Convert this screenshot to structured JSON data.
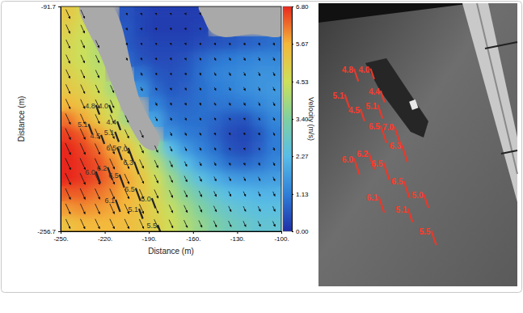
{
  "chart_data": {
    "type": "heatmap",
    "x_label": "Distance (m)",
    "y_label": "Distance (m)",
    "xlim": [
      -250,
      -100
    ],
    "xticks": [
      {
        "value": -250,
        "label": "-250."
      },
      {
        "value": -220,
        "label": "-220."
      },
      {
        "value": -190,
        "label": "-190."
      },
      {
        "value": -160,
        "label": "-160."
      },
      {
        "value": -130,
        "label": "-130."
      },
      {
        "value": -100,
        "label": "-100."
      }
    ],
    "ylim": [
      -256.7,
      -91.7
    ],
    "yticks": [
      -256.7,
      -91.7
    ],
    "x": [
      -245,
      -235,
      -225,
      -215,
      -205,
      -195,
      -185,
      -175,
      -165,
      -155,
      -145,
      -135,
      -125,
      -115,
      -105
    ],
    "y": [
      -97.2,
      -108.2,
      -119.2,
      -130.2,
      -141.2,
      -152.2,
      -163.2,
      -174.2,
      -185.2,
      -196.2,
      -207.2,
      -218.2,
      -229.2,
      -240.2,
      -251.2
    ],
    "values": [
      [
        5.2,
        4.8,
        null,
        null,
        0.5,
        0.3,
        0.2,
        0.2,
        0.2,
        0.2,
        null,
        null,
        null,
        null,
        null
      ],
      [
        5.0,
        4.6,
        null,
        null,
        0.6,
        0.3,
        0.2,
        0.2,
        0.2,
        0.3,
        null,
        null,
        null,
        null,
        null
      ],
      [
        4.8,
        4.5,
        4.2,
        null,
        0.6,
        0.4,
        0.3,
        0.3,
        0.3,
        0.4,
        0.5,
        0.6,
        0.7,
        0.8,
        0.9
      ],
      [
        4.8,
        4.5,
        4.2,
        null,
        0.8,
        0.5,
        0.4,
        0.4,
        0.5,
        0.8,
        1.0,
        1.1,
        1.2,
        1.3,
        1.3
      ],
      [
        5.0,
        4.7,
        4.3,
        null,
        null,
        1.0,
        0.6,
        0.5,
        0.6,
        0.9,
        1.2,
        1.3,
        1.4,
        1.5,
        1.5
      ],
      [
        5.2,
        5.0,
        4.6,
        4.0,
        null,
        1.5,
        0.8,
        0.6,
        0.7,
        0.9,
        1.1,
        1.2,
        1.4,
        1.5,
        1.6
      ],
      [
        5.6,
        5.3,
        4.9,
        4.4,
        null,
        null,
        1.2,
        0.8,
        0.8,
        0.9,
        1.0,
        1.0,
        1.1,
        1.3,
        1.5
      ],
      [
        6.2,
        5.8,
        5.2,
        4.7,
        3.8,
        null,
        1.8,
        1.0,
        0.9,
        0.9,
        0.8,
        0.6,
        0.5,
        0.9,
        1.3
      ],
      [
        6.6,
        6.4,
        5.9,
        5.3,
        4.8,
        4.0,
        null,
        1.5,
        1.1,
        1.0,
        0.7,
        0.4,
        0.3,
        0.6,
        1.1
      ],
      [
        6.8,
        6.6,
        6.3,
        5.8,
        5.3,
        4.6,
        3.6,
        2.3,
        1.6,
        1.2,
        0.9,
        0.5,
        0.4,
        0.7,
        1.1
      ],
      [
        6.8,
        6.7,
        6.5,
        6.1,
        5.6,
        5.0,
        4.2,
        3.2,
        2.3,
        1.7,
        1.3,
        0.9,
        0.8,
        1.0,
        1.3
      ],
      [
        6.8,
        6.7,
        6.5,
        6.2,
        5.8,
        5.3,
        4.6,
        3.8,
        3.0,
        2.4,
        2.0,
        1.7,
        1.6,
        1.6,
        1.7
      ],
      [
        6.4,
        6.4,
        6.2,
        6.0,
        5.7,
        5.3,
        4.8,
        4.1,
        3.5,
        3.0,
        2.6,
        2.3,
        2.2,
        2.1,
        2.1
      ],
      [
        5.9,
        6.0,
        5.9,
        5.8,
        5.6,
        5.3,
        4.9,
        4.4,
        3.9,
        3.4,
        3.0,
        2.7,
        2.5,
        2.4,
        2.4
      ],
      [
        5.4,
        5.6,
        5.6,
        5.6,
        5.5,
        5.3,
        5.0,
        4.6,
        4.1,
        3.7,
        3.3,
        3.0,
        2.8,
        2.6,
        2.6
      ]
    ],
    "colorbar": {
      "label": "Velocity (m/s)",
      "range": [
        0,
        6.8
      ],
      "ticks": [
        {
          "value": 0,
          "label": "0.00"
        },
        1.13,
        2.27,
        {
          "value": 3.4,
          "label": "3.40"
        },
        4.53,
        5.67,
        {
          "value": 6.8,
          "label": "6.80"
        }
      ]
    },
    "measurements": {
      "x": [
        -226,
        -217,
        -231,
        -211.5,
        -222.5,
        -213,
        -211.5,
        -204,
        -200,
        -226,
        -218,
        -210,
        -199,
        -212.6,
        -188,
        -196.7,
        -184
      ],
      "y": [
        -164,
        -164,
        -178,
        -176,
        -186,
        -183.7,
        -195,
        -195.5,
        -205.6,
        -212.8,
        -209.8,
        -215.1,
        -225,
        -233.5,
        -232.4,
        -240.1,
        -252
      ],
      "values": [
        4.8,
        4.0,
        5.1,
        4.4,
        4.5,
        5.1,
        6.5,
        7.0,
        6.3,
        6.0,
        6.2,
        6.5,
        6.5,
        6.1,
        5.0,
        5.1,
        5.5
      ],
      "value_labels": [
        "4.8",
        "4.0",
        "5.1",
        "4.4",
        "4.5",
        "5.1",
        "6.5",
        "7.0",
        "6.3",
        "6.0",
        "6.2",
        "6.5",
        "6.5",
        "6.1",
        "5.0",
        "5.1",
        "5.5"
      ]
    }
  }
}
